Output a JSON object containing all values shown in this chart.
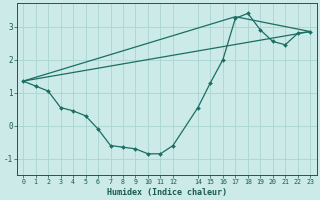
{
  "xlabel": "Humidex (Indice chaleur)",
  "background_color": "#cceae7",
  "grid_color": "#aad4d0",
  "line_color": "#1a6e64",
  "xlim": [
    -0.5,
    23.5
  ],
  "ylim": [
    -1.5,
    3.7
  ],
  "yticks": [
    -1,
    0,
    1,
    2,
    3
  ],
  "xticks": [
    0,
    1,
    2,
    3,
    4,
    5,
    6,
    7,
    8,
    9,
    10,
    11,
    12,
    14,
    15,
    16,
    17,
    18,
    19,
    20,
    21,
    22,
    23
  ],
  "line1_x": [
    0,
    1,
    2,
    3,
    4,
    5,
    6,
    7,
    8,
    9,
    10,
    11,
    12,
    14,
    15,
    16,
    17,
    18,
    19,
    20,
    21,
    22,
    23
  ],
  "line1_y": [
    1.35,
    1.2,
    1.05,
    0.55,
    0.45,
    0.3,
    -0.1,
    -0.6,
    -0.65,
    -0.7,
    -0.85,
    -0.85,
    -0.6,
    0.55,
    1.3,
    2.0,
    3.25,
    3.4,
    2.9,
    2.55,
    2.45,
    2.8,
    2.85
  ],
  "line2_x": [
    0,
    23
  ],
  "line2_y": [
    1.35,
    2.85
  ],
  "line3_x": [
    0,
    17,
    23
  ],
  "line3_y": [
    1.35,
    3.3,
    2.85
  ]
}
